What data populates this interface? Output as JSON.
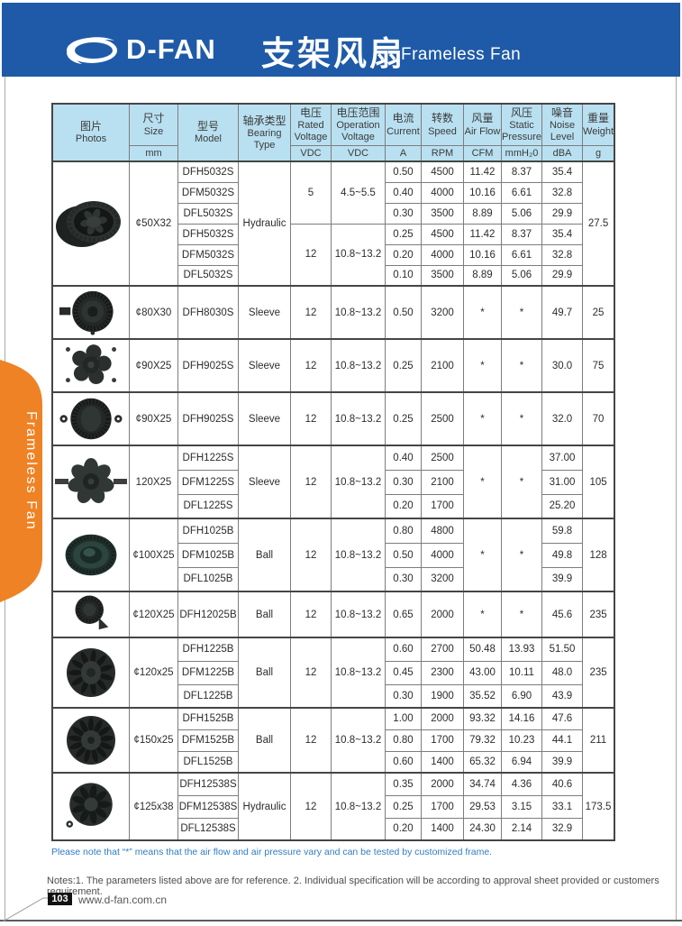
{
  "header": {
    "brand": "D-FAN",
    "title_zh": "支架风扇",
    "title_en": "Frameless Fan"
  },
  "side_tab": {
    "label": "Frameless Fan"
  },
  "colors": {
    "banner_blue": "#1e5aa7",
    "table_header_blue": "#b9e0f1",
    "tab_orange": "#ef8224",
    "note_blue": "#2e7cc4"
  },
  "table": {
    "columns": [
      {
        "key": "photos",
        "zh": "图片",
        "en": "Photos",
        "unit": ""
      },
      {
        "key": "size",
        "zh": "尺寸",
        "en": "Size",
        "unit": "mm"
      },
      {
        "key": "model",
        "zh": "型号",
        "en": "Model",
        "unit": ""
      },
      {
        "key": "bearing",
        "zh": "轴承类型",
        "en": "Bearing Type",
        "unit": ""
      },
      {
        "key": "rated_voltage",
        "zh": "电压",
        "en": "Rated Voltage",
        "unit": "VDC"
      },
      {
        "key": "operation_voltage",
        "zh": "电压范围",
        "en": "Operation Voltage",
        "unit": "VDC"
      },
      {
        "key": "current",
        "zh": "电流",
        "en": "Current",
        "unit": "A"
      },
      {
        "key": "speed",
        "zh": "转数",
        "en": "Speed",
        "unit": "RPM"
      },
      {
        "key": "air_flow",
        "zh": "风量",
        "en": "Air Flow",
        "unit": "CFM"
      },
      {
        "key": "static_pressure",
        "zh": "风压",
        "en": "Static Pressure",
        "unit": "mmH₂0"
      },
      {
        "key": "noise_level",
        "zh": "噪音",
        "en": "Noise Level",
        "unit": "dBA"
      },
      {
        "key": "weight",
        "zh": "重量",
        "en": "Weight",
        "unit": "g"
      }
    ],
    "blocks": [
      {
        "photo": "impeller-side-fan-photo",
        "size": "¢50X32",
        "bearing": "Hydraulic",
        "weight": "27.5",
        "groups": [
          {
            "rated": "5",
            "range": "4.5~5.5",
            "rows": [
              {
                "model": "DFH5032S",
                "current": "0.50",
                "speed": "4500",
                "airflow": "11.42",
                "pressure": "8.37",
                "noise": "35.4"
              },
              {
                "model": "DFM5032S",
                "current": "0.40",
                "speed": "4000",
                "airflow": "10.16",
                "pressure": "6.61",
                "noise": "32.8"
              },
              {
                "model": "DFL5032S",
                "current": "0.30",
                "speed": "3500",
                "airflow": "8.89",
                "pressure": "5.06",
                "noise": "29.9"
              }
            ]
          },
          {
            "rated": "12",
            "range": "10.8~13.2",
            "rows": [
              {
                "model": "DFH5032S",
                "current": "0.25",
                "speed": "4500",
                "airflow": "11.42",
                "pressure": "8.37",
                "noise": "35.4"
              },
              {
                "model": "DFM5032S",
                "current": "0.20",
                "speed": "4000",
                "airflow": "10.16",
                "pressure": "6.61",
                "noise": "32.8"
              },
              {
                "model": "DFL5032S",
                "current": "0.10",
                "speed": "3500",
                "airflow": "8.89",
                "pressure": "5.06",
                "noise": "29.9"
              }
            ]
          }
        ]
      },
      {
        "photo": "blower-fan-photo",
        "size": "¢80X30",
        "bearing": "Sleeve",
        "weight": "25",
        "groups": [
          {
            "rated": "12",
            "range": "10.8~13.2",
            "rows": [
              {
                "model": "DFH8030S",
                "current": "0.50",
                "speed": "3200",
                "airflow": "*",
                "pressure": "*",
                "noise": "49.7"
              }
            ]
          }
        ]
      },
      {
        "photo": "axial-5-blade-fan-photo",
        "size": "¢90X25",
        "bearing": "Sleeve",
        "weight": "75",
        "groups": [
          {
            "rated": "12",
            "range": "10.8~13.2",
            "rows": [
              {
                "model": "DFH9025S",
                "current": "0.25",
                "speed": "2100",
                "airflow": "*",
                "pressure": "*",
                "noise": "30.0"
              }
            ]
          }
        ]
      },
      {
        "photo": "round-ear-fan-photo",
        "size": "¢90X25",
        "bearing": "Sleeve",
        "weight": "70",
        "groups": [
          {
            "rated": "12",
            "range": "10.8~13.2",
            "rows": [
              {
                "model": "DFH9025S",
                "current": "0.25",
                "speed": "2500",
                "airflow": "*",
                "pressure": "*",
                "noise": "32.0"
              }
            ]
          }
        ]
      },
      {
        "photo": "axial-7-blade-fan-photo",
        "size": "120X25",
        "bearing": "Sleeve",
        "weight": "105",
        "airflow_span": "*",
        "pressure_span": "*",
        "groups": [
          {
            "rated": "12",
            "range": "10.8~13.2",
            "rows": [
              {
                "model": "DFH1225S",
                "current": "0.40",
                "speed": "2500",
                "noise": "37.00"
              },
              {
                "model": "DFM1225S",
                "current": "0.30",
                "speed": "2100",
                "noise": "31.00"
              },
              {
                "model": "DFL1225S",
                "current": "0.20",
                "speed": "1700",
                "noise": "25.20"
              }
            ]
          }
        ]
      },
      {
        "photo": "dome-fan-photo",
        "size": "¢100X25",
        "bearing": "Ball",
        "weight": "128",
        "airflow_span": "*",
        "pressure_span": "*",
        "groups": [
          {
            "rated": "12",
            "range": "10.8~13.2",
            "rows": [
              {
                "model": "DFH1025B",
                "current": "0.80",
                "speed": "4800",
                "noise": "59.8"
              },
              {
                "model": "DFM1025B",
                "current": "0.50",
                "speed": "4000",
                "noise": "49.8"
              },
              {
                "model": "DFL1025B",
                "current": "0.30",
                "speed": "3200",
                "noise": "39.9"
              }
            ]
          }
        ]
      },
      {
        "photo": "round-foot-fan-photo",
        "size": "¢120X25",
        "bearing": "Ball",
        "weight": "235",
        "groups": [
          {
            "rated": "12",
            "range": "10.8~13.2",
            "rows": [
              {
                "model": "DFH12025B",
                "current": "0.65",
                "speed": "2000",
                "airflow": "*",
                "pressure": "*",
                "noise": "45.6"
              }
            ]
          }
        ]
      },
      {
        "photo": "impeller-fan-large-photo",
        "size": "¢120x25",
        "bearing": "Ball",
        "weight": "235",
        "groups": [
          {
            "rated": "12",
            "range": "10.8~13.2",
            "rows": [
              {
                "model": "DFH1225B",
                "current": "0.60",
                "speed": "2700",
                "airflow": "50.48",
                "pressure": "13.93",
                "noise": "51.50"
              },
              {
                "model": "DFM1225B",
                "current": "0.45",
                "speed": "2300",
                "airflow": "43.00",
                "pressure": "10.11",
                "noise": "48.0"
              },
              {
                "model": "DFL1225B",
                "current": "0.30",
                "speed": "1900",
                "airflow": "35.52",
                "pressure": "6.90",
                "noise": "43.9"
              }
            ]
          }
        ]
      },
      {
        "photo": "impeller-fan-xl-photo",
        "size": "¢150x25",
        "bearing": "Ball",
        "weight": "211",
        "groups": [
          {
            "rated": "12",
            "range": "10.8~13.2",
            "rows": [
              {
                "model": "DFH1525B",
                "current": "1.00",
                "speed": "2000",
                "airflow": "93.32",
                "pressure": "14.16",
                "noise": "47.6"
              },
              {
                "model": "DFM1525B",
                "current": "0.80",
                "speed": "1700",
                "airflow": "79.32",
                "pressure": "10.23",
                "noise": "44.1"
              },
              {
                "model": "DFL1525B",
                "current": "0.60",
                "speed": "1400",
                "airflow": "65.32",
                "pressure": "6.94",
                "noise": "39.9"
              }
            ]
          }
        ]
      },
      {
        "photo": "curved-blade-fan-photo",
        "size": "¢125x38",
        "bearing": "Hydraulic",
        "weight": "173.5",
        "groups": [
          {
            "rated": "12",
            "range": "10.8~13.2",
            "rows": [
              {
                "model": "DFH12538S",
                "current": "0.35",
                "speed": "2000",
                "airflow": "34.74",
                "pressure": "4.36",
                "noise": "40.6"
              },
              {
                "model": "DFM12538S",
                "current": "0.25",
                "speed": "1700",
                "airflow": "29.53",
                "pressure": "3.15",
                "noise": "33.1"
              },
              {
                "model": "DFL12538S",
                "current": "0.20",
                "speed": "1400",
                "airflow": "24.30",
                "pressure": "2.14",
                "noise": "32.9"
              }
            ]
          }
        ]
      }
    ]
  },
  "footnotes": {
    "star_note": "Please note that “*” means that the air flow and air pressure vary and can be tested by customized frame.",
    "notes": "Notes:1. The parameters listed above are for reference.   2. Individual specification will be according to approval sheet provided or customers requirement."
  },
  "footer": {
    "page_number": "103",
    "website": "www.d-fan.com.cn"
  }
}
